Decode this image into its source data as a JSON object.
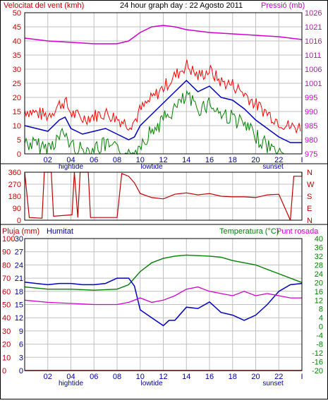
{
  "header": {
    "wind_title": "Velocitat del vent (kmh)",
    "date_title": "24 hour graph day : 22 Agosto 2011",
    "pressure_title": "Pressió (mb)"
  },
  "rain_panel_labels": {
    "rain": "Pluja (mm)",
    "humidity": "Humitat",
    "temperature": "Temperatura (°C)",
    "dewpoint": "Punt rosada"
  },
  "x_axis": {
    "hour_ticks": [
      "02",
      "04",
      "06",
      "08",
      "10",
      "12",
      "14",
      "16",
      "18",
      "20",
      "22",
      "I"
    ],
    "events": [
      {
        "hour": 4,
        "label": "hightide"
      },
      {
        "hour": 11,
        "label": "lowtide"
      },
      {
        "hour": 21.5,
        "label": "sunset"
      }
    ]
  },
  "colors": {
    "frame": "#000000",
    "grid": "#c0c0c0",
    "gust": "#ff0000",
    "wind_avg": "#0000c0",
    "wind_green": "#008000",
    "pressure": "#d000d0",
    "direction": "#c00000",
    "temperature": "#008000",
    "humidity": "#0000c0",
    "dewpoint": "#d000d0",
    "rain": "#c00000",
    "wind_title": "#c00000",
    "date_title": "#000000",
    "pressure_title": "#d000d0",
    "rain_title": "#c00000",
    "humidity_title": "#0000a0",
    "temperature_title": "#008000",
    "dewpoint_title": "#d000d0"
  },
  "chart_data": [
    {
      "type": "line",
      "title": "24 hour graph day : 22 Agosto 2011",
      "xlabel": "",
      "x_range": [
        0,
        24
      ],
      "ylim_left": [
        0,
        50
      ],
      "ylim_right": [
        975,
        1025
      ],
      "left_ticks": [
        "0",
        "5",
        "10",
        "15",
        "20",
        "25",
        "30",
        "35",
        "40",
        "45",
        "50"
      ],
      "right_ticks": [
        "975",
        "980",
        "985",
        "990",
        "995",
        "1001",
        "1006",
        "1011",
        "1016",
        "1021",
        "1026"
      ],
      "grid": true,
      "series": [
        {
          "name": "Velocitat del vent (kmh)",
          "axis": "left",
          "points": [
            [
              0,
              10
            ],
            [
              1,
              9
            ],
            [
              2,
              8
            ],
            [
              3,
              12
            ],
            [
              3.5,
              13
            ],
            [
              4,
              9
            ],
            [
              5,
              7
            ],
            [
              6,
              8
            ],
            [
              7,
              9
            ],
            [
              8,
              7
            ],
            [
              9,
              5
            ],
            [
              9.5,
              6
            ],
            [
              10,
              10
            ],
            [
              11,
              14
            ],
            [
              12,
              18
            ],
            [
              13,
              22
            ],
            [
              14,
              26
            ],
            [
              15,
              22
            ],
            [
              16,
              24
            ],
            [
              17,
              20
            ],
            [
              18,
              19
            ],
            [
              19,
              16
            ],
            [
              20,
              12
            ],
            [
              21,
              9
            ],
            [
              22,
              6
            ],
            [
              23,
              4
            ],
            [
              24,
              4
            ]
          ]
        },
        {
          "name": "Pressió (mb)",
          "axis": "right",
          "points": [
            [
              0,
              1016
            ],
            [
              2,
              1015
            ],
            [
              4,
              1014.5
            ],
            [
              6,
              1014
            ],
            [
              8,
              1014
            ],
            [
              9,
              1015
            ],
            [
              10,
              1018
            ],
            [
              11,
              1020
            ],
            [
              12,
              1020.5
            ],
            [
              13,
              1020
            ],
            [
              14,
              1019
            ],
            [
              16,
              1018
            ],
            [
              18,
              1017.5
            ],
            [
              20,
              1017
            ],
            [
              22,
              1016.5
            ],
            [
              24,
              1015.5
            ]
          ]
        }
      ]
    },
    {
      "type": "line",
      "title": "",
      "x_range": [
        0,
        24
      ],
      "ylim_left": [
        0,
        360
      ],
      "left_ticks": [
        "0",
        "90",
        "180",
        "270",
        "360"
      ],
      "right_ticks": [
        "N",
        "E",
        "S",
        "W",
        "N"
      ],
      "grid": true,
      "series": [
        {
          "name": "",
          "axis": "left",
          "points": [
            [
              0,
              360
            ],
            [
              0.4,
              20
            ],
            [
              1.5,
              15
            ],
            [
              1.7,
              360
            ],
            [
              2.3,
              360
            ],
            [
              2.5,
              30
            ],
            [
              4.1,
              40
            ],
            [
              4.3,
              360
            ],
            [
              4.6,
              20
            ],
            [
              4.8,
              360
            ],
            [
              5.5,
              360
            ],
            [
              5.7,
              20
            ],
            [
              8,
              20
            ],
            [
              8.4,
              350
            ],
            [
              9,
              330
            ],
            [
              9.5,
              280
            ],
            [
              10,
              200
            ],
            [
              11,
              170
            ],
            [
              12,
              160
            ],
            [
              13,
              195
            ],
            [
              14,
              205
            ],
            [
              15,
              190
            ],
            [
              16,
              200
            ],
            [
              17,
              180
            ],
            [
              18,
              175
            ],
            [
              19,
              175
            ],
            [
              20,
              170
            ],
            [
              21,
              190
            ],
            [
              22,
              195
            ],
            [
              23,
              0
            ],
            [
              23.3,
              330
            ],
            [
              24,
              330
            ],
            [
              24,
              360
            ]
          ]
        }
      ]
    },
    {
      "type": "line",
      "title": "",
      "x_range": [
        0,
        24
      ],
      "ylim_left": [
        0,
        100
      ],
      "ylim_mid": [
        0,
        30
      ],
      "ylim_right": [
        -20,
        40
      ],
      "left_ticks": [
        "0",
        "10",
        "20",
        "30",
        "40",
        "50",
        "60",
        "70",
        "80",
        "90",
        "100"
      ],
      "mid_ticks": [
        "0",
        "3",
        "6",
        "9",
        "12",
        "15",
        "18",
        "21",
        "24",
        "27",
        "30"
      ],
      "right_ticks": [
        "-20",
        "-16",
        "-12",
        "-8",
        "-4",
        "0",
        "4",
        "8",
        "12",
        "16",
        "20",
        "24",
        "28",
        "32",
        "36",
        "40"
      ],
      "grid": true,
      "series": [
        {
          "name": "Temperatura (°C)",
          "axis": "right",
          "points": [
            [
              0,
              18
            ],
            [
              2,
              17
            ],
            [
              4,
              17
            ],
            [
              6,
              16.5
            ],
            [
              8,
              17
            ],
            [
              9,
              19
            ],
            [
              10,
              25
            ],
            [
              11,
              29
            ],
            [
              12,
              31
            ],
            [
              13,
              32
            ],
            [
              14,
              32.5
            ],
            [
              16,
              32
            ],
            [
              17,
              31.5
            ],
            [
              18,
              30
            ],
            [
              20,
              28
            ],
            [
              22,
              24
            ],
            [
              24,
              20
            ]
          ]
        },
        {
          "name": "Humitat",
          "axis": "left",
          "points": [
            [
              0,
              67
            ],
            [
              1,
              66
            ],
            [
              2,
              65
            ],
            [
              3,
              66
            ],
            [
              4,
              66
            ],
            [
              5,
              65
            ],
            [
              6,
              65
            ],
            [
              7,
              66
            ],
            [
              8,
              70
            ],
            [
              9,
              70
            ],
            [
              9.5,
              64
            ],
            [
              10,
              46
            ],
            [
              11,
              40
            ],
            [
              12,
              34
            ],
            [
              12.5,
              38
            ],
            [
              13,
              38
            ],
            [
              14,
              48
            ],
            [
              15,
              47
            ],
            [
              16,
              52
            ],
            [
              17,
              44
            ],
            [
              18,
              42
            ],
            [
              19,
              38
            ],
            [
              20,
              42
            ],
            [
              21,
              50
            ],
            [
              22,
              60
            ],
            [
              23,
              65
            ],
            [
              24,
              66
            ]
          ]
        },
        {
          "name": "Punt rosada",
          "axis": "right",
          "points": [
            [
              0,
              12
            ],
            [
              2,
              11
            ],
            [
              4,
              10.5
            ],
            [
              6,
              10
            ],
            [
              8,
              10
            ],
            [
              9,
              11
            ],
            [
              10,
              13
            ],
            [
              11,
              11
            ],
            [
              12,
              12
            ],
            [
              13,
              14
            ],
            [
              14,
              17
            ],
            [
              15,
              18
            ],
            [
              16,
              16
            ],
            [
              17,
              15
            ],
            [
              18,
              14
            ],
            [
              19,
              16
            ],
            [
              20,
              14
            ],
            [
              21,
              15
            ],
            [
              22,
              14
            ],
            [
              23,
              13
            ],
            [
              24,
              13
            ]
          ]
        },
        {
          "name": "Pluja (mm)",
          "axis": "left",
          "points": [
            [
              0,
              0
            ],
            [
              24,
              0
            ]
          ]
        }
      ]
    }
  ]
}
